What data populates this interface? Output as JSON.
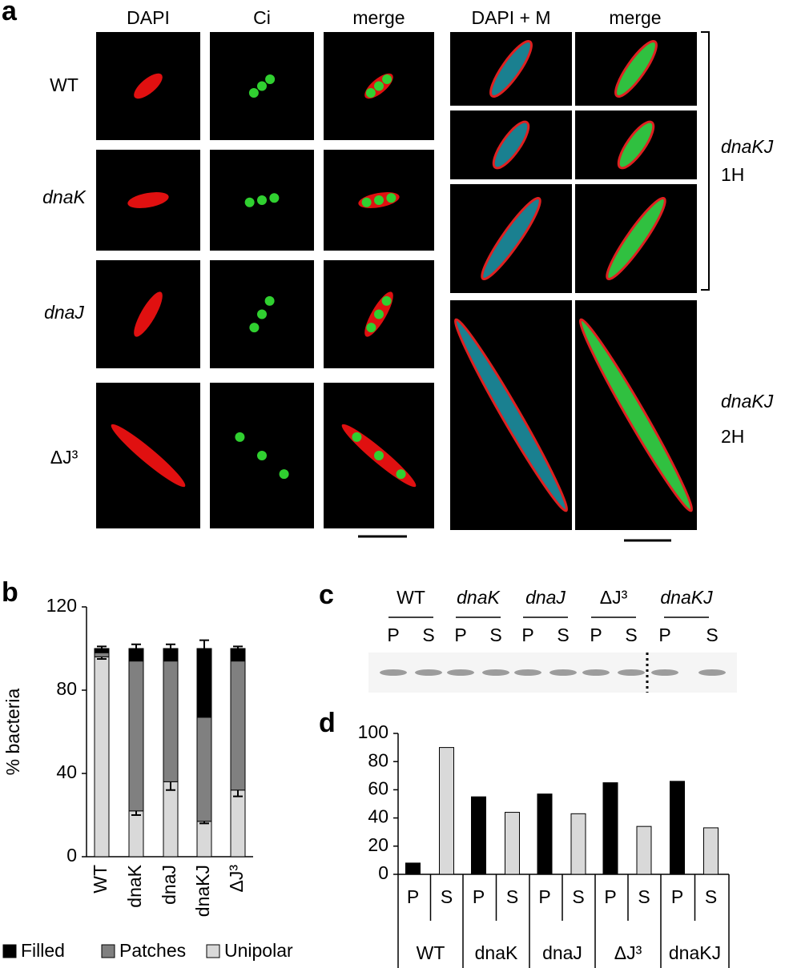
{
  "panel_a": {
    "label": "a",
    "columns": [
      "DAPI",
      "Ci",
      "merge",
      "DAPI + M",
      "merge"
    ],
    "rows": [
      "WT",
      "dnaK",
      "dnaJ",
      "ΔJ³"
    ],
    "right_groups": [
      {
        "strain": "dnaKJ",
        "time": "1H"
      },
      {
        "strain": "dnaKJ",
        "time": "2H"
      }
    ]
  },
  "panel_b": {
    "label": "b"
  },
  "panel_c": {
    "label": "c",
    "groups": [
      {
        "label": "WT",
        "lanes": [
          "P",
          "S"
        ]
      },
      {
        "label": "dnaK",
        "lanes": [
          "P",
          "S"
        ]
      },
      {
        "label": "dnaJ",
        "lanes": [
          "P",
          "S"
        ]
      },
      {
        "label": "ΔJ³",
        "lanes": [
          "P",
          "S"
        ]
      },
      {
        "label": "dnaKJ",
        "lanes": [
          "P",
          "S"
        ]
      }
    ]
  },
  "panel_d": {
    "label": "d"
  },
  "chart_data": [
    {
      "type": "stacked_bar",
      "ylabel": "% bacteria",
      "categories": [
        "WT",
        "dnaK",
        "dnaJ",
        "dnaKJ",
        "ΔJ³"
      ],
      "series": [
        {
          "name": "Unipolar",
          "color": "#d9d9d9",
          "values": [
            96,
            22,
            36,
            17,
            32
          ],
          "errors": [
            1,
            2,
            4,
            1,
            3
          ]
        },
        {
          "name": "Patches",
          "color": "#808080",
          "values": [
            2,
            72,
            58,
            50,
            62
          ]
        },
        {
          "name": "Filled",
          "color": "#000000",
          "values": [
            2,
            6,
            6,
            33,
            6
          ],
          "errors": [
            1,
            2,
            2,
            4,
            1
          ]
        }
      ],
      "ylim": [
        0,
        120
      ],
      "yticks": [
        0,
        40,
        80,
        120
      ]
    },
    {
      "type": "grouped_bar",
      "groups": [
        "WT",
        "dnaK",
        "dnaJ",
        "ΔJ³",
        "dnaKJ"
      ],
      "series": [
        {
          "name": "P",
          "color": "#000000",
          "values": [
            8,
            55,
            57,
            65,
            66
          ]
        },
        {
          "name": "S",
          "color": "#d9d9d9",
          "values": [
            90,
            44,
            43,
            34,
            33
          ]
        }
      ],
      "ylim": [
        0,
        100
      ],
      "yticks": [
        0,
        20,
        40,
        60,
        80,
        100
      ]
    }
  ]
}
